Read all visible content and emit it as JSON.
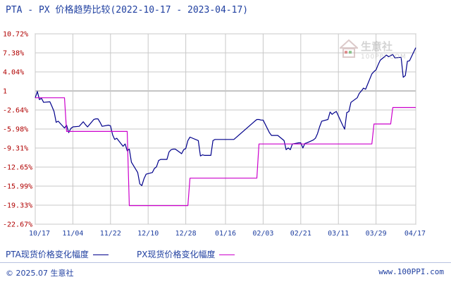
{
  "title": "PTA - PX 价格趋势比较(2022-10-17 - 2023-04-17)",
  "watermark": {
    "logo": "生意社",
    "url": "100PPI.COM"
  },
  "legend": {
    "pta": "PTA现货价格变化幅度",
    "px": "PX现货价格变化幅度"
  },
  "footer": {
    "left": "© 2025.07 生意社",
    "right": "www.100PPI.com"
  },
  "colors": {
    "pta": "#00008b",
    "px": "#cc00cc",
    "grid": "#c8c8c8",
    "axis_text_y": "#b00000",
    "axis_text_x": "#1f3fa0"
  },
  "chart_data": {
    "type": "line",
    "title": "PTA - PX 价格趋势比较(2022-10-17 - 2023-04-17)",
    "ylim": [
      -22.67,
      10.72
    ],
    "yticks": [
      {
        "value": 10.72,
        "label": "10.72%"
      },
      {
        "value": 7.38,
        "label": "7.38%"
      },
      {
        "value": 4.04,
        "label": "4.04%"
      },
      {
        "value": 0.7,
        "label": "1"
      },
      {
        "value": -2.64,
        "label": "-2.64%"
      },
      {
        "value": -5.98,
        "label": "-5.98%"
      },
      {
        "value": -9.31,
        "label": "-9.31%"
      },
      {
        "value": -12.65,
        "label": "-12.65%"
      },
      {
        "value": -15.99,
        "label": "-15.99%"
      },
      {
        "value": -19.33,
        "label": "-19.33%"
      },
      {
        "value": -22.67,
        "label": "-22.67%"
      }
    ],
    "baseline": 0.7,
    "xlim": [
      "2022-10-17",
      "2023-04-17"
    ],
    "xticks": [
      {
        "date": "2022-10-17",
        "label": "10/17"
      },
      {
        "date": "2022-11-04",
        "label": "11/04"
      },
      {
        "date": "2022-11-22",
        "label": "11/22"
      },
      {
        "date": "2022-12-10",
        "label": "12/10"
      },
      {
        "date": "2022-12-28",
        "label": "12/28"
      },
      {
        "date": "2023-01-16",
        "label": "01/16"
      },
      {
        "date": "2023-02-03",
        "label": "02/03"
      },
      {
        "date": "2023-02-21",
        "label": "02/21"
      },
      {
        "date": "2023-03-11",
        "label": "03/11"
      },
      {
        "date": "2023-03-29",
        "label": "03/29"
      },
      {
        "date": "2023-04-17",
        "label": "04/17"
      }
    ],
    "series": [
      {
        "name": "PTA现货价格变化幅度",
        "points": [
          [
            "2022-10-17",
            -0.5
          ],
          [
            "2022-10-18",
            0.6
          ],
          [
            "2022-10-19",
            -0.8
          ],
          [
            "2022-10-20",
            -0.6
          ],
          [
            "2022-10-21",
            -1.3
          ],
          [
            "2022-10-24",
            -1.2
          ],
          [
            "2022-10-25",
            -2.0
          ],
          [
            "2022-10-26",
            -2.9
          ],
          [
            "2022-10-27",
            -4.8
          ],
          [
            "2022-10-28",
            -4.6
          ],
          [
            "2022-10-31",
            -5.8
          ],
          [
            "2022-11-01",
            -5.3
          ],
          [
            "2022-11-02",
            -6.6
          ],
          [
            "2022-11-03",
            -5.9
          ],
          [
            "2022-11-04",
            -5.6
          ],
          [
            "2022-11-07",
            -5.5
          ],
          [
            "2022-11-08",
            -5.1
          ],
          [
            "2022-11-09",
            -4.7
          ],
          [
            "2022-11-10",
            -5.2
          ],
          [
            "2022-11-11",
            -5.6
          ],
          [
            "2022-11-14",
            -4.3
          ],
          [
            "2022-11-15",
            -4.2
          ],
          [
            "2022-11-16",
            -4.2
          ],
          [
            "2022-11-17",
            -4.8
          ],
          [
            "2022-11-18",
            -5.5
          ],
          [
            "2022-11-21",
            -5.3
          ],
          [
            "2022-11-22",
            -5.4
          ],
          [
            "2022-11-23",
            -7.0
          ],
          [
            "2022-11-24",
            -7.8
          ],
          [
            "2022-11-25",
            -7.6
          ],
          [
            "2022-11-28",
            -9.0
          ],
          [
            "2022-11-29",
            -8.6
          ],
          [
            "2022-11-30",
            -9.8
          ],
          [
            "2022-12-01",
            -9.5
          ],
          [
            "2022-12-02",
            -11.8
          ],
          [
            "2022-12-05",
            -13.6
          ],
          [
            "2022-12-06",
            -15.6
          ],
          [
            "2022-12-07",
            -15.9
          ],
          [
            "2022-12-08",
            -14.7
          ],
          [
            "2022-12-09",
            -13.9
          ],
          [
            "2022-12-12",
            -13.6
          ],
          [
            "2022-12-13",
            -12.9
          ],
          [
            "2022-12-14",
            -12.6
          ],
          [
            "2022-12-15",
            -11.5
          ],
          [
            "2022-12-16",
            -11.3
          ],
          [
            "2022-12-19",
            -11.3
          ],
          [
            "2022-12-20",
            -10.0
          ],
          [
            "2022-12-21",
            -9.6
          ],
          [
            "2022-12-22",
            -9.5
          ],
          [
            "2022-12-23",
            -9.5
          ],
          [
            "2022-12-26",
            -10.3
          ],
          [
            "2022-12-27",
            -9.6
          ],
          [
            "2022-12-28",
            -9.4
          ],
          [
            "2022-12-29",
            -8.0
          ],
          [
            "2022-12-30",
            -7.4
          ],
          [
            "2023-01-03",
            -8.0
          ],
          [
            "2023-01-04",
            -10.7
          ],
          [
            "2023-01-05",
            -10.5
          ],
          [
            "2023-01-06",
            -10.6
          ],
          [
            "2023-01-09",
            -10.6
          ],
          [
            "2023-01-10",
            -8.0
          ],
          [
            "2023-01-11",
            -7.8
          ],
          [
            "2023-01-12",
            -7.8
          ],
          [
            "2023-01-13",
            -7.8
          ],
          [
            "2023-01-16",
            -7.8
          ],
          [
            "2023-01-17",
            -7.8
          ],
          [
            "2023-01-18",
            -7.8
          ],
          [
            "2023-01-19",
            -7.8
          ],
          [
            "2023-01-20",
            -7.8
          ],
          [
            "2023-01-30",
            -4.6
          ],
          [
            "2023-01-31",
            -4.3
          ],
          [
            "2023-02-01",
            -4.3
          ],
          [
            "2023-02-02",
            -4.4
          ],
          [
            "2023-02-03",
            -4.4
          ],
          [
            "2023-02-06",
            -6.6
          ],
          [
            "2023-02-07",
            -7.1
          ],
          [
            "2023-02-08",
            -7.1
          ],
          [
            "2023-02-09",
            -7.1
          ],
          [
            "2023-02-10",
            -7.1
          ],
          [
            "2023-02-13",
            -8.0
          ],
          [
            "2023-02-14",
            -9.6
          ],
          [
            "2023-02-15",
            -9.3
          ],
          [
            "2023-02-16",
            -9.6
          ],
          [
            "2023-02-17",
            -8.6
          ],
          [
            "2023-02-20",
            -8.4
          ],
          [
            "2023-02-21",
            -8.4
          ],
          [
            "2023-02-22",
            -9.3
          ],
          [
            "2023-02-23",
            -8.5
          ],
          [
            "2023-02-24",
            -8.4
          ],
          [
            "2023-02-27",
            -7.9
          ],
          [
            "2023-02-28",
            -7.6
          ],
          [
            "2023-03-01",
            -6.8
          ],
          [
            "2023-03-02",
            -5.6
          ],
          [
            "2023-03-03",
            -4.6
          ],
          [
            "2023-03-06",
            -4.3
          ],
          [
            "2023-03-07",
            -3.0
          ],
          [
            "2023-03-08",
            -3.4
          ],
          [
            "2023-03-09",
            -3.1
          ],
          [
            "2023-03-10",
            -2.9
          ],
          [
            "2023-03-13",
            -5.3
          ],
          [
            "2023-03-14",
            -6.0
          ],
          [
            "2023-03-15",
            -3.1
          ],
          [
            "2023-03-16",
            -2.9
          ],
          [
            "2023-03-17",
            -1.3
          ],
          [
            "2023-03-20",
            -0.5
          ],
          [
            "2023-03-21",
            0.3
          ],
          [
            "2023-03-22",
            0.7
          ],
          [
            "2023-03-23",
            1.2
          ],
          [
            "2023-03-24",
            1.0
          ],
          [
            "2023-03-27",
            3.7
          ],
          [
            "2023-03-28",
            4.1
          ],
          [
            "2023-03-29",
            4.4
          ],
          [
            "2023-03-30",
            5.3
          ],
          [
            "2023-03-31",
            6.1
          ],
          [
            "2023-04-03",
            7.0
          ],
          [
            "2023-04-04",
            6.7
          ],
          [
            "2023-04-06",
            7.1
          ],
          [
            "2023-04-07",
            6.5
          ],
          [
            "2023-04-10",
            6.6
          ],
          [
            "2023-04-11",
            3.1
          ],
          [
            "2023-04-12",
            3.4
          ],
          [
            "2023-04-13",
            5.9
          ],
          [
            "2023-04-14",
            6.0
          ],
          [
            "2023-04-17",
            8.3
          ]
        ]
      },
      {
        "name": "PX现货价格变化幅度",
        "points": [
          [
            "2022-10-17",
            -0.5
          ],
          [
            "2022-10-31",
            -0.5
          ],
          [
            "2022-11-01",
            -6.4
          ],
          [
            "2022-11-30",
            -6.4
          ],
          [
            "2022-12-01",
            -19.4
          ],
          [
            "2022-12-29",
            -19.4
          ],
          [
            "2022-12-30",
            -14.6
          ],
          [
            "2023-01-31",
            -14.6
          ],
          [
            "2023-02-01",
            -8.6
          ],
          [
            "2023-03-27",
            -8.6
          ],
          [
            "2023-03-28",
            -5.1
          ],
          [
            "2023-04-05",
            -5.1
          ],
          [
            "2023-04-06",
            -2.2
          ],
          [
            "2023-04-17",
            -2.2
          ]
        ]
      }
    ],
    "grid": true,
    "legend_position": "bottom-left"
  }
}
